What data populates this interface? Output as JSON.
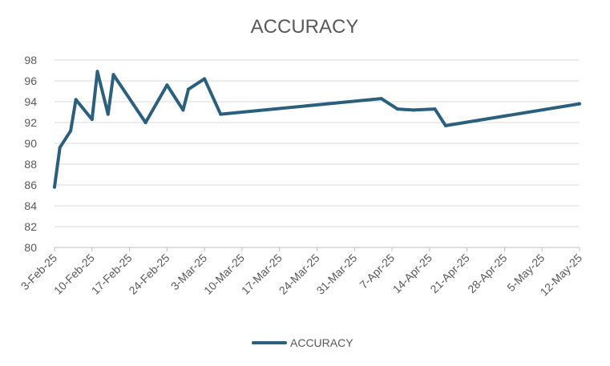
{
  "chart_data": {
    "type": "line",
    "title": "ACCURACY",
    "xlabel": "",
    "ylabel": "",
    "x_tick_labels": [
      "3-Feb-25",
      "10-Feb-25",
      "17-Feb-25",
      "24-Feb-25",
      "3-Mar-25",
      "10-Mar-25",
      "17-Mar-25",
      "24-Mar-25",
      "31-Mar-25",
      "7-Apr-25",
      "14-Apr-25",
      "21-Apr-25",
      "28-Apr-25",
      "5-May-25",
      "12-May-25"
    ],
    "y_ticks": [
      80,
      82,
      84,
      86,
      88,
      90,
      92,
      94,
      96,
      98
    ],
    "ylim": [
      80,
      98
    ],
    "xlim": [
      "2025-02-03",
      "2025-05-12"
    ],
    "grid": true,
    "legend_position": "bottom",
    "series": [
      {
        "name": "ACCURACY",
        "color": "#2a5f7d",
        "points": [
          {
            "x": "2025-02-03",
            "y": 85.8
          },
          {
            "x": "2025-02-04",
            "y": 89.6
          },
          {
            "x": "2025-02-06",
            "y": 91.2
          },
          {
            "x": "2025-02-07",
            "y": 94.2
          },
          {
            "x": "2025-02-10",
            "y": 92.3
          },
          {
            "x": "2025-02-11",
            "y": 96.9
          },
          {
            "x": "2025-02-13",
            "y": 92.8
          },
          {
            "x": "2025-02-14",
            "y": 96.6
          },
          {
            "x": "2025-02-20",
            "y": 92.0
          },
          {
            "x": "2025-02-24",
            "y": 95.6
          },
          {
            "x": "2025-02-27",
            "y": 93.2
          },
          {
            "x": "2025-02-28",
            "y": 95.2
          },
          {
            "x": "2025-03-03",
            "y": 96.2
          },
          {
            "x": "2025-03-06",
            "y": 92.8
          },
          {
            "x": "2025-04-05",
            "y": 94.3
          },
          {
            "x": "2025-04-08",
            "y": 93.3
          },
          {
            "x": "2025-04-11",
            "y": 93.2
          },
          {
            "x": "2025-04-15",
            "y": 93.3
          },
          {
            "x": "2025-04-17",
            "y": 91.7
          },
          {
            "x": "2025-05-12",
            "y": 93.8
          }
        ]
      }
    ]
  }
}
